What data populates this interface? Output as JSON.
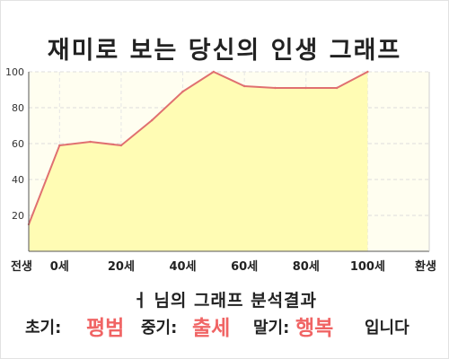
{
  "title": "재미로 보는 당신의 인생 그래프",
  "chart_data": {
    "type": "area",
    "title": "재미로 보는 당신의 인생 그래프",
    "x": [
      0,
      10,
      20,
      30,
      40,
      50,
      60,
      70,
      80,
      90,
      100,
      110
    ],
    "values": [
      15,
      59,
      61,
      59,
      73,
      89,
      100,
      92,
      91,
      91,
      91,
      100
    ],
    "x_tick_labels": [
      {
        "x": 0,
        "label": "전생"
      },
      {
        "x": 10,
        "label": "0세"
      },
      {
        "x": 30,
        "label": "20세"
      },
      {
        "x": 50,
        "label": "40세"
      },
      {
        "x": 70,
        "label": "60세"
      },
      {
        "x": 90,
        "label": "80세"
      },
      {
        "x": 110,
        "label": "100세"
      },
      {
        "x": 130,
        "label": "환생"
      }
    ],
    "y_ticks": [
      20,
      40,
      60,
      80,
      100
    ],
    "xlim": [
      0,
      130
    ],
    "ylim": [
      0,
      100
    ],
    "grid": true,
    "line_color": "#e07070",
    "fill_color": "#fffcb4",
    "plot_bg": "#fffef0"
  },
  "result": {
    "title": "님의 그래프 분석결과",
    "early_label": "초기:",
    "early_value": "평범",
    "mid_label": "중기:",
    "mid_value": "출세",
    "late_label": "말기:",
    "late_value": "행복",
    "suffix": "입니다"
  },
  "colors": {
    "accent": "#f06464"
  }
}
